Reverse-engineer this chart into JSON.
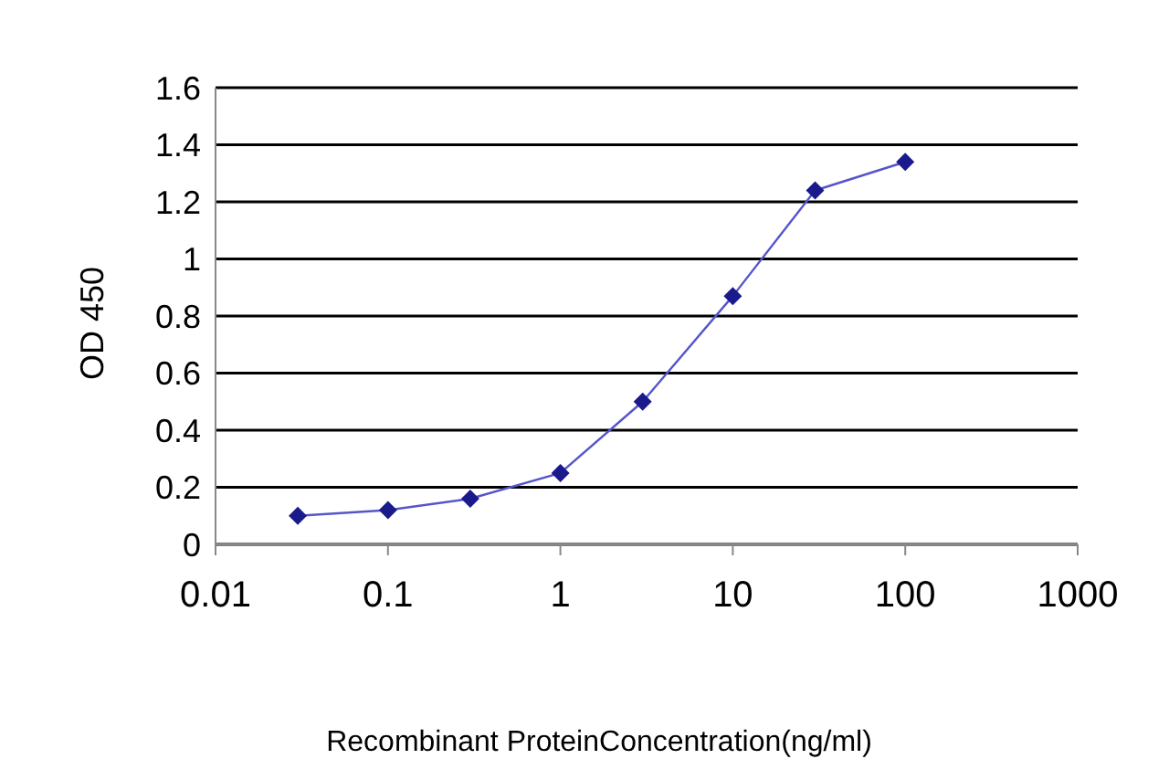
{
  "chart_data": {
    "type": "line",
    "xlabel": "Recombinant ProteinConcentration(ng/ml)",
    "ylabel": "OD 450",
    "x": [
      0.03,
      0.1,
      0.3,
      1,
      3,
      10,
      30,
      100
    ],
    "series": [
      {
        "color": "#1a1a8c",
        "values": [
          0.1,
          0.12,
          0.16,
          0.25,
          0.5,
          0.87,
          1.24,
          1.34
        ]
      }
    ],
    "xlim": [
      0.01,
      1000
    ],
    "xticks": [
      0.01,
      0.1,
      1,
      10,
      100,
      1000
    ],
    "ylim": [
      0,
      1.6
    ],
    "yticks": [
      0,
      0.2,
      0.4,
      0.6,
      0.8,
      1,
      1.2,
      1.4,
      1.6
    ],
    "log": "x",
    "grid": "y",
    "marker": "diamond",
    "line_style": "solid",
    "legend": false
  }
}
